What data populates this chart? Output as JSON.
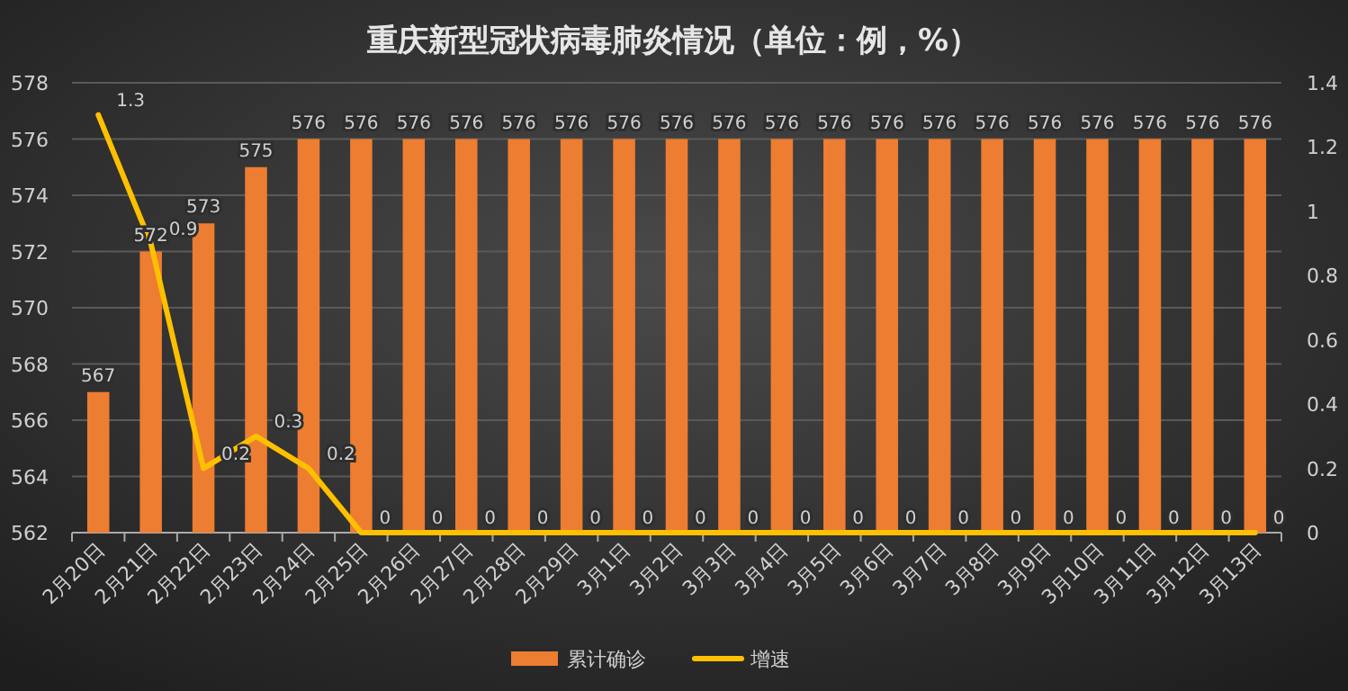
{
  "chart_data": {
    "type": "bar",
    "title": "重庆新型冠状病毒肺炎情况（单位：例，%）",
    "categories": [
      "2月20日",
      "2月21日",
      "2月22日",
      "2月23日",
      "2月24日",
      "2月25日",
      "2月26日",
      "2月27日",
      "2月28日",
      "2月29日",
      "3月1日",
      "3月2日",
      "3月3日",
      "3月4日",
      "3月5日",
      "3月6日",
      "3月7日",
      "3月8日",
      "3月9日",
      "3月10日",
      "3月11日",
      "3月12日",
      "3月13日"
    ],
    "series": [
      {
        "name": "累计确诊",
        "color": "#ed7d31",
        "values": [
          567,
          572,
          573,
          575,
          576,
          576,
          576,
          576,
          576,
          576,
          576,
          576,
          576,
          576,
          576,
          576,
          576,
          576,
          576,
          576,
          576,
          576,
          576
        ]
      },
      {
        "name": "增速",
        "type": "line",
        "axis": "y2",
        "color": "#ffc000",
        "values": [
          1.3,
          0.9,
          0.2,
          0.3,
          0.2,
          0,
          0,
          0,
          0,
          0,
          0,
          0,
          0,
          0,
          0,
          0,
          0,
          0,
          0,
          0,
          0,
          0,
          0
        ]
      }
    ],
    "ylim": [
      562,
      578
    ],
    "yticks": [
      562,
      564,
      566,
      568,
      570,
      572,
      574,
      576,
      578
    ],
    "y2lim": [
      0,
      1.4
    ],
    "y2ticks": [
      0,
      0.2,
      0.4,
      0.6,
      0.8,
      1,
      1.2,
      1.4
    ],
    "grid": "y",
    "legend": "bottom",
    "data_labels": true
  }
}
